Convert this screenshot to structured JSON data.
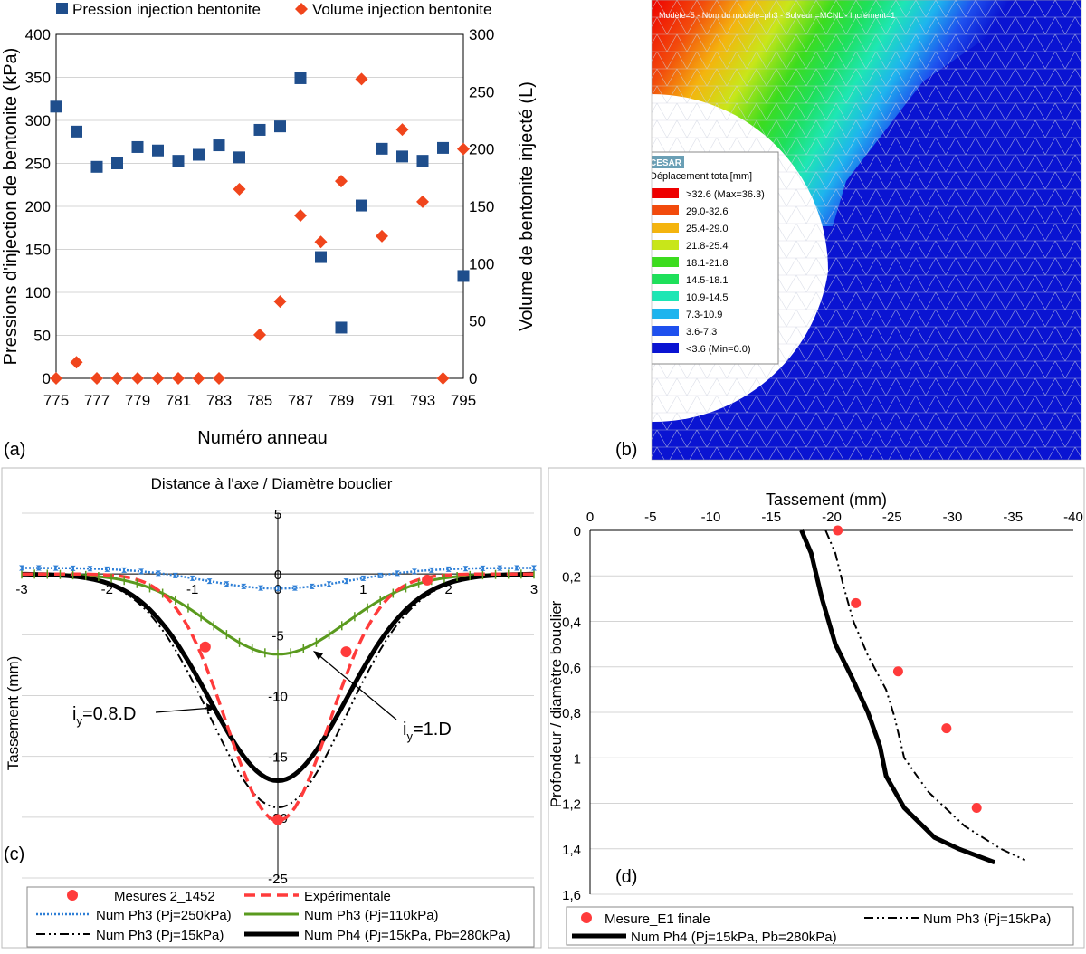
{
  "colors": {
    "blue_marker": "#1f4e8c",
    "orange_marker": "#f0451c",
    "red": "#ff3b3b",
    "blue_line": "#2e7fd6",
    "green_line": "#5a9a1e",
    "black": "#000000",
    "grid": "#d4d4d4"
  },
  "panel_labels": {
    "a": "(a)",
    "b": "(b)",
    "c": "(c)",
    "d": "(d)"
  },
  "panel_a": {
    "chart_data": {
      "type": "scatter",
      "xlabel": "Numéro anneau",
      "ylabel_left": "Pressions d'injection de bentonite (kPa)",
      "ylabel_right": "Volume de bentonite injecté (L)",
      "xlim": [
        775,
        795
      ],
      "ylim_left": [
        0,
        400
      ],
      "ylim_right": [
        0,
        300
      ],
      "xticks": [
        "775",
        "777",
        "779",
        "781",
        "783",
        "785",
        "787",
        "789",
        "791",
        "793",
        "795"
      ],
      "yticks_left": [
        "400",
        "350",
        "300",
        "250",
        "200",
        "150",
        "100",
        "50",
        "0"
      ],
      "yticks_right": [
        "300",
        "250",
        "200",
        "150",
        "100",
        "50",
        "0"
      ],
      "series": [
        {
          "name": "Pression injection bentonite",
          "axis": "left",
          "marker": "square",
          "x": [
            775,
            776,
            777,
            778,
            779,
            780,
            781,
            782,
            783,
            784,
            785,
            786,
            787,
            788,
            789,
            790,
            791,
            792,
            793,
            794,
            795
          ],
          "y": [
            316,
            287,
            246,
            250,
            269,
            265,
            253,
            260,
            271,
            257,
            289,
            293,
            349,
            141,
            59,
            201,
            267,
            258,
            253,
            268,
            119
          ]
        },
        {
          "name": "Volume injection bentonite",
          "axis": "right",
          "marker": "diamond",
          "x": [
            775,
            776,
            777,
            778,
            779,
            780,
            781,
            782,
            783,
            784,
            785,
            786,
            787,
            788,
            789,
            790,
            791,
            792,
            793,
            794,
            795
          ],
          "y": [
            0,
            14,
            0,
            0,
            0,
            0,
            0,
            0,
            0,
            165,
            38,
            67,
            142,
            119,
            172,
            261,
            124,
            217,
            154,
            0,
            200
          ]
        }
      ]
    }
  },
  "panel_b": {
    "header": "Modèle=5  -  Nom du modèle=ph3  -  Solveur =MCNL  -  Incrément=1",
    "legend_logo": "CESAR",
    "legend_title": "Déplacement total[mm]",
    "legend_items": [
      {
        "label": ">32.6 (Max=36.3)",
        "color": "#ee0000"
      },
      {
        "label": "29.0-32.6",
        "color": "#f24a0c"
      },
      {
        "label": "25.4-29.0",
        "color": "#f4b40e"
      },
      {
        "label": "21.8-25.4",
        "color": "#c8e61a"
      },
      {
        "label": "18.1-21.8",
        "color": "#3cdc1e"
      },
      {
        "label": "14.5-18.1",
        "color": "#1ee05a"
      },
      {
        "label": "10.9-14.5",
        "color": "#1ee6b4"
      },
      {
        "label": "7.3-10.9",
        "color": "#1eb4ee"
      },
      {
        "label": "3.6-7.3",
        "color": "#1e50ee"
      },
      {
        "label": "<3.6 (Min=0.0)",
        "color": "#0a14d2"
      }
    ]
  },
  "panel_c": {
    "chart_data": {
      "type": "line",
      "title": "Distance à l'axe / Diamètre bouclier",
      "ylabel": "Tassement  (mm)",
      "xlim": [
        -3,
        3
      ],
      "ylim": [
        -25,
        5
      ],
      "xticks": [
        "-3",
        "-2",
        "-1",
        "0",
        "1",
        "2",
        "3"
      ],
      "yticks": [
        "5",
        "0",
        "-5",
        "-10",
        "-15",
        "-20",
        "-25"
      ],
      "annotations": [
        {
          "text": "i",
          "sub": "y",
          "rest": "=0.8.D"
        },
        {
          "text": "i",
          "sub": "y",
          "rest": "=1.D"
        }
      ],
      "series": [
        {
          "name": "Mesures 2_1452",
          "kind": "points",
          "x": [
            -0.85,
            0,
            0.8,
            1.75
          ],
          "y": [
            -6,
            -20.2,
            -6.4,
            -0.5
          ]
        },
        {
          "name": "Expérimentale",
          "kind": "gauss",
          "smax": -20.3,
          "i": 0.6,
          "offset": 0
        },
        {
          "name": "Num Ph3 (Pj=250kPa)",
          "kind": "gauss",
          "smax": -1.2,
          "i": 0.85,
          "offset": 0.5
        },
        {
          "name": "Num Ph3 (Pj=110kPa)",
          "kind": "gauss",
          "smax": -6.6,
          "i": 0.8,
          "offset": 0
        },
        {
          "name": "Num Ph3 (Pj=15kPa)",
          "kind": "gauss",
          "smax": -19.2,
          "i": 0.8,
          "offset": 0
        },
        {
          "name": "Num Ph4 (Pj=15kPa, Pb=280kPa)",
          "kind": "gauss",
          "smax": -17,
          "i": 0.8,
          "offset": 0
        }
      ]
    }
  },
  "panel_d": {
    "chart_data": {
      "type": "line",
      "xlabel": "Tassement (mm)",
      "ylabel": "Profondeur / diamètre bouclier",
      "xlim": [
        0,
        -40
      ],
      "ylim": [
        0,
        1.6
      ],
      "xticks": [
        "0",
        "-5",
        "-10",
        "-15",
        "-20",
        "-25",
        "-30",
        "-35",
        "-40"
      ],
      "yticks": [
        "0",
        "0,2",
        "0,4",
        "0,6",
        "0,8",
        "1",
        "1,2",
        "1,4",
        "1,6"
      ],
      "series": [
        {
          "name": "Mesure_E1 finale",
          "kind": "points",
          "x": [
            -20.5,
            -22,
            -25.5,
            -29.5,
            -32
          ],
          "y": [
            0,
            0.32,
            0.62,
            0.87,
            1.22
          ]
        },
        {
          "name": "Num Ph3 (Pj=15kPa)",
          "kind": "line",
          "x": [
            -19.5,
            -20.3,
            -21,
            -21.8,
            -23,
            -24.5,
            -25.2,
            -26,
            -28,
            -31,
            -34,
            -36
          ],
          "y": [
            0,
            0.1,
            0.25,
            0.4,
            0.55,
            0.7,
            0.82,
            1.0,
            1.15,
            1.3,
            1.4,
            1.45
          ]
        },
        {
          "name": "Num Ph4 (Pj=15kPa, Pb=280kPa)",
          "kind": "line",
          "x": [
            -17.5,
            -18.3,
            -19.2,
            -20.3,
            -21.7,
            -23,
            -24,
            -24.5,
            -26,
            -28.5,
            -30.5,
            -33.5
          ],
          "y": [
            0,
            0.1,
            0.3,
            0.5,
            0.65,
            0.8,
            0.95,
            1.08,
            1.22,
            1.35,
            1.4,
            1.46
          ]
        }
      ]
    }
  }
}
